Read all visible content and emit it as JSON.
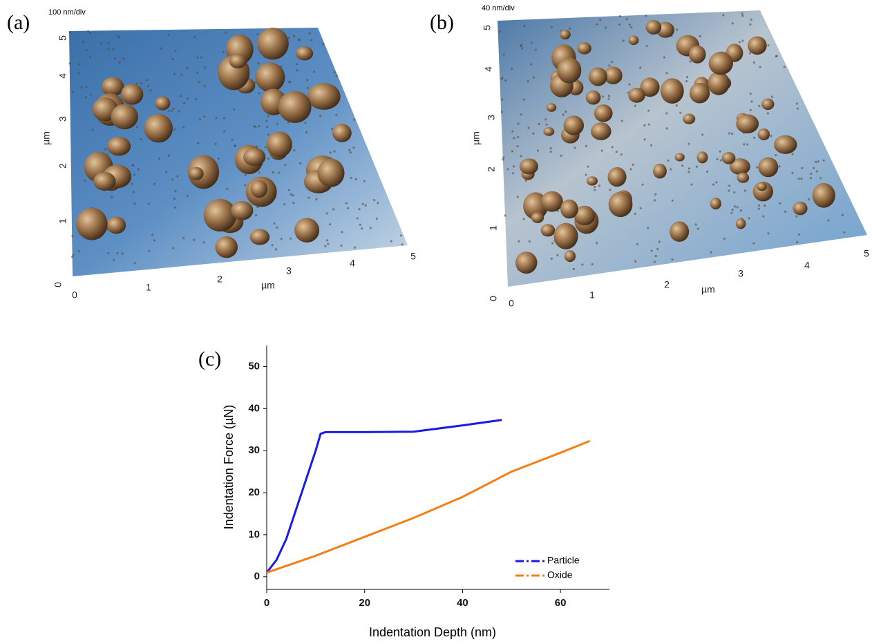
{
  "panels": [
    {
      "label": "(a)",
      "scale": "100 nm/div",
      "x_label": "µm",
      "y_label": "µm",
      "x_ticks": [
        0,
        1,
        2,
        3,
        4,
        5
      ],
      "y_ticks": [
        0,
        1,
        2,
        3,
        4,
        5
      ]
    },
    {
      "label": "(b)",
      "scale": "40 nm/div",
      "x_label": "µm",
      "y_label": "µm",
      "x_ticks": [
        0,
        1,
        2,
        3,
        4,
        5
      ],
      "y_ticks": [
        0,
        1,
        2,
        3,
        4,
        5
      ]
    }
  ],
  "chart_data": {
    "type": "line",
    "label": "(c)",
    "x_label": "Indentation Depth (nm)",
    "y_label": "Indentation Force (µN)",
    "xlim": [
      0,
      70
    ],
    "ylim": [
      -3,
      55
    ],
    "xticks": [
      0,
      20,
      40,
      60
    ],
    "yticks": [
      0,
      10,
      20,
      30,
      40,
      50
    ],
    "legend": "lower right",
    "series": [
      {
        "name": "Particle",
        "color": "#1a1ae6",
        "x": [
          0,
          2,
          4,
          6,
          8,
          10,
          11,
          12,
          20,
          30,
          40,
          48
        ],
        "values": [
          1,
          4,
          9,
          16,
          23,
          30,
          34,
          34.4,
          34.4,
          34.5,
          36,
          37.3
        ]
      },
      {
        "name": "Oxide",
        "color": "#f47f17",
        "x": [
          0,
          10,
          20,
          30,
          40,
          50,
          60,
          66
        ],
        "values": [
          1,
          5,
          9.5,
          14,
          19,
          25,
          29.5,
          32.3
        ]
      }
    ]
  }
}
